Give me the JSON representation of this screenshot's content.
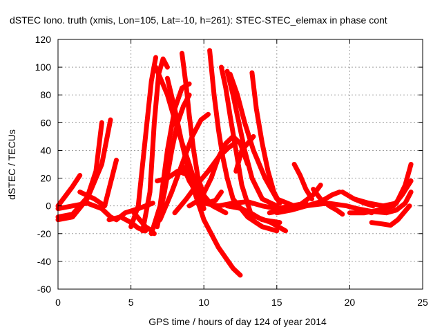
{
  "chart_data": {
    "type": "scatter",
    "title": "dSTEC Iono. truth (xmis, Lon=105, Lat=-10, h=261): STEC-STEC_elemax in phase cont",
    "xlabel": "GPS time / hours of day 124 of year 2014",
    "ylabel": "dSTEC  / TECUs",
    "xlim": [
      0,
      25
    ],
    "ylim": [
      -60,
      120
    ],
    "xticks": [
      "0",
      "5",
      "10",
      "15",
      "20",
      "25"
    ],
    "yticks": [
      "-60",
      "-40",
      "-20",
      "0",
      "20",
      "40",
      "60",
      "80",
      "100",
      "120"
    ],
    "grid": true,
    "legend": "none",
    "color": "#ff0000",
    "series": [
      {
        "x": [
          0.0,
          0.5,
          1.0,
          1.5
        ],
        "y": [
          0,
          7,
          14,
          22
        ]
      },
      {
        "x": [
          0.0,
          1.0,
          2.0,
          2.6,
          3.0
        ],
        "y": [
          -8,
          -6,
          6,
          25,
          60
        ]
      },
      {
        "x": [
          0.0,
          1.0,
          2.0,
          3.0,
          3.6
        ],
        "y": [
          -10,
          -8,
          5,
          30,
          62
        ]
      },
      {
        "x": [
          1.5,
          2.5,
          3.2,
          4.0
        ],
        "y": [
          10,
          5,
          0,
          33
        ]
      },
      {
        "x": [
          0.0,
          2.0,
          3.0,
          3.6,
          4.0
        ],
        "y": [
          -2,
          2,
          -2,
          -8,
          -10
        ]
      },
      {
        "x": [
          3.5,
          4.3,
          5.0,
          5.5,
          6.0
        ],
        "y": [
          -10,
          -8,
          -12,
          -16,
          -18
        ]
      },
      {
        "x": [
          4.0,
          4.6,
          5.5,
          6.0,
          6.5
        ],
        "y": [
          -10,
          -5,
          -2,
          0,
          2
        ]
      },
      {
        "x": [
          5.0,
          5.5,
          5.8,
          6.1,
          6.4,
          6.7
        ],
        "y": [
          -15,
          0,
          30,
          60,
          90,
          107
        ]
      },
      {
        "x": [
          5.8,
          6.3,
          6.6,
          6.9,
          7.2,
          7.5
        ],
        "y": [
          -18,
          10,
          60,
          95,
          106,
          100
        ]
      },
      {
        "x": [
          5.2,
          5.6,
          6.0,
          6.3,
          6.6
        ],
        "y": [
          -5,
          -10,
          -15,
          -17,
          -20
        ]
      },
      {
        "x": [
          6.4,
          7.0,
          7.5,
          8.0,
          8.5,
          9.0
        ],
        "y": [
          -20,
          0,
          40,
          70,
          85,
          88
        ]
      },
      {
        "x": [
          6.8,
          7.3,
          7.8,
          8.2,
          8.6,
          9.0
        ],
        "y": [
          -15,
          10,
          40,
          60,
          72,
          80
        ]
      },
      {
        "x": [
          7.0,
          7.8,
          8.5,
          9.2,
          9.8,
          10.3
        ],
        "y": [
          -10,
          10,
          30,
          50,
          62,
          66
        ]
      },
      {
        "x": [
          6.7,
          7.5,
          8.2,
          9.0,
          9.6,
          10.0
        ],
        "y": [
          100,
          80,
          55,
          30,
          10,
          -2
        ]
      },
      {
        "x": [
          7.5,
          8.0,
          8.5,
          9.2,
          10.0,
          11.0,
          12.0,
          12.5
        ],
        "y": [
          92,
          70,
          45,
          15,
          -10,
          -30,
          -45,
          -50
        ]
      },
      {
        "x": [
          8.5,
          8.8,
          9.0,
          9.3,
          9.6,
          10.0
        ],
        "y": [
          110,
          85,
          65,
          40,
          20,
          8
        ]
      },
      {
        "x": [
          8.6,
          9.0,
          9.6,
          10.2,
          10.8,
          11.2
        ],
        "y": [
          28,
          18,
          8,
          2,
          4,
          10
        ]
      },
      {
        "x": [
          6.8,
          7.5,
          8.2,
          9.0,
          9.8,
          10.6,
          11.5
        ],
        "y": [
          18,
          20,
          25,
          22,
          10,
          0,
          -5
        ]
      },
      {
        "x": [
          8.0,
          8.8,
          9.5,
          10.3,
          11.0,
          11.7,
          12.1
        ],
        "y": [
          -5,
          5,
          15,
          25,
          35,
          42,
          45
        ]
      },
      {
        "x": [
          9.0,
          9.8,
          10.5,
          11.0,
          11.5,
          12.0,
          12.5,
          13.0
        ],
        "y": [
          0,
          5,
          20,
          35,
          45,
          50,
          45,
          30
        ]
      },
      {
        "x": [
          10.4,
          10.7,
          11.0,
          11.3,
          11.6,
          12.0,
          13.0,
          14.0,
          15.0
        ],
        "y": [
          112,
          80,
          55,
          35,
          20,
          5,
          -8,
          -15,
          -18
        ]
      },
      {
        "x": [
          11.2,
          11.5,
          11.8,
          12.2,
          12.6,
          13.2,
          14.0,
          15.2
        ],
        "y": [
          100,
          85,
          65,
          40,
          15,
          -5,
          -10,
          -12
        ]
      },
      {
        "x": [
          11.6,
          12.0,
          12.4,
          12.8,
          13.3,
          14.0,
          15.0
        ],
        "y": [
          97,
          80,
          60,
          40,
          20,
          5,
          0
        ]
      },
      {
        "x": [
          11.8,
          12.3,
          12.8,
          13.4,
          14.2,
          15.0,
          16.2
        ],
        "y": [
          95,
          80,
          60,
          40,
          20,
          5,
          0
        ]
      },
      {
        "x": [
          13.3,
          13.6,
          14.0,
          14.4,
          14.8,
          15.2
        ],
        "y": [
          96,
          70,
          45,
          25,
          10,
          2
        ]
      },
      {
        "x": [
          12.2,
          12.6,
          13.0,
          13.4
        ],
        "y": [
          25,
          40,
          45,
          50
        ]
      },
      {
        "x": [
          11.6,
          12.6,
          13.6,
          14.6,
          15.6
        ],
        "y": [
          0,
          -2,
          -8,
          -12,
          -18
        ]
      },
      {
        "x": [
          10.0,
          11.0,
          12.0,
          13.0,
          14.0,
          15.0,
          16.0,
          17.0
        ],
        "y": [
          2,
          0,
          2,
          3,
          0,
          -2,
          0,
          2
        ]
      },
      {
        "x": [
          16.2,
          16.6,
          17.0,
          17.4
        ],
        "y": [
          30,
          22,
          12,
          5
        ]
      },
      {
        "x": [
          14.5,
          15.5,
          16.5,
          17.5,
          18.0
        ],
        "y": [
          -5,
          -3,
          0,
          8,
          15
        ]
      },
      {
        "x": [
          15.0,
          16.0,
          17.0,
          18.0,
          18.8,
          19.3
        ],
        "y": [
          -5,
          -3,
          0,
          3,
          8,
          10
        ]
      },
      {
        "x": [
          17.5,
          18.0,
          18.6,
          19.1,
          19.5
        ],
        "y": [
          12,
          5,
          0,
          -3,
          -6
        ]
      },
      {
        "x": [
          17.0,
          18.5,
          19.8,
          20.5,
          21.2,
          21.5
        ],
        "y": [
          0,
          2,
          0,
          -2,
          -4,
          -5
        ]
      },
      {
        "x": [
          19.5,
          20.3,
          21.0,
          21.6
        ],
        "y": [
          10,
          5,
          2,
          0
        ]
      },
      {
        "x": [
          20.3,
          21.3,
          22.3,
          23.2,
          23.8,
          24.2
        ],
        "y": [
          5,
          2,
          0,
          2,
          15,
          30
        ]
      },
      {
        "x": [
          20.0,
          21.0,
          22.0,
          23.0,
          23.6,
          24.2
        ],
        "y": [
          -5,
          -5,
          -3,
          0,
          8,
          18
        ]
      },
      {
        "x": [
          20.5,
          21.5,
          22.5,
          23.2,
          23.8,
          24.2
        ],
        "y": [
          -2,
          -4,
          -5,
          -3,
          2,
          10
        ]
      },
      {
        "x": [
          21.5,
          22.2,
          22.8,
          23.3,
          23.7,
          24.1
        ],
        "y": [
          -12,
          -13,
          -14,
          -10,
          -5,
          0
        ]
      }
    ]
  }
}
